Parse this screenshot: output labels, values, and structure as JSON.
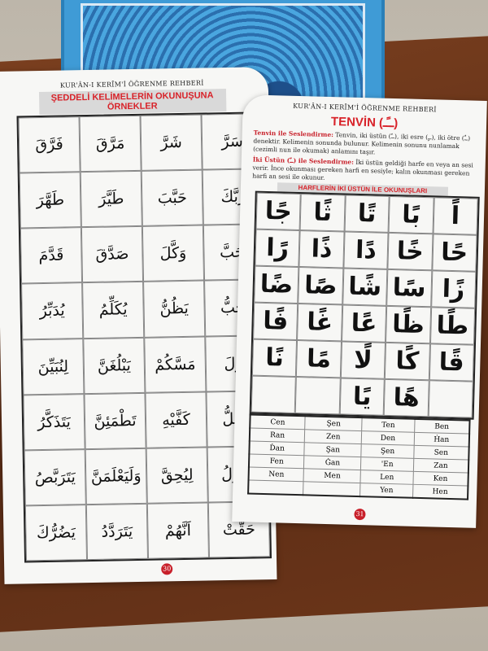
{
  "left_page": {
    "header": "KUR'ÂN-I KERÎM'İ ÖĞRENME REHBERİ",
    "banner": "ŞEDDELİ KELİMELERİN OKUNUŞUNA ÖRNEKLER",
    "rows": [
      [
        "فَرَّقَ",
        "مَرَّقَ",
        "شَرَّ",
        "سَرَّ"
      ],
      [
        "طَهَّرَ",
        "طَيَّرَ",
        "حَبَّبَ",
        "رَبَّكَ"
      ],
      [
        "قَدَّمَ",
        "صَدَّقَ",
        "وَكَّلَ",
        "اَحَبَّ"
      ],
      [
        "يُدَبِّرُ",
        "يُكَلِّمُ",
        "يَظُنُّ",
        "يُحِبُّ"
      ],
      [
        "لِنُبَيِّنَ",
        "يَبْلُغَنَّ",
        "مَسَّكُمْ",
        "نُزِّلَ"
      ],
      [
        "يَتَذَكَّرُ",
        "تَطْمَئِنَّ",
        "كَفَّيْهِ",
        "يُضِلُّ"
      ],
      [
        "يَتَرَبَّصُ",
        "وَلَيَعْلَمَنَّ",
        "لِيُحِقَّ",
        "تَتَنَزَّلُ"
      ],
      [
        "يَضُرُّكَ",
        "يَتَرَدَّدُ",
        "اَنَّهُمْ",
        "حَقَّتْ"
      ]
    ],
    "page_number": "30"
  },
  "right_page": {
    "header": "KUR'ÂN-I KERÎM'İ ÖĞRENME REHBERİ",
    "title": "TENVİN (ــًـ)",
    "para1_label": "Tenvin ile Seslendirme:",
    "para1_text": "Tenvin, iki üstün (ــً), iki esre (ــٍ), iki ötre (ــٌ) denektir. Kelimenin sonunda bulunur. Kelimenin sonunu nunlamak (cezimli nun ile okumak) anlamını taşır.",
    "para2_label": "İki Üstün (ــً) ile Seslendirme:",
    "para2_text": "İki üstün geldiği harfe en veya an sesi verir. İnce okunması gereken harfi en sesiyle; kalın okunması gereken harfi an sesi ile okunur.",
    "banner": "HARFLERİN İKİ ÜSTÜN İLE OKUNUŞLARI",
    "letters": [
      [
        "جًا",
        "ثًا",
        "تًا",
        "بًا",
        "اً"
      ],
      [
        "رًا",
        "ذًا",
        "دًا",
        "خًا",
        "حًا"
      ],
      [
        "ضًا",
        "صًا",
        "شًا",
        "سًا",
        "زًا"
      ],
      [
        "فًا",
        "غًا",
        "عًا",
        "ظًا",
        "طًا"
      ],
      [
        "نًا",
        "مًا",
        "لًا",
        "كًا",
        "قًا"
      ],
      [
        "",
        "",
        "يًا",
        "هًا",
        ""
      ]
    ],
    "transliteration": [
      [
        "Cen",
        "Şen",
        "Ten",
        "Ben"
      ],
      [
        "Ran",
        "Zen",
        "Den",
        "Ḣan"
      ],
      [
        "Ḋan",
        "Şan",
        "Şen",
        "Sen"
      ],
      [
        "Fen",
        "Ġan",
        "'En",
        "Zan"
      ],
      [
        "Nen",
        "Men",
        "Len",
        "Ken"
      ],
      [
        "",
        "",
        "Yen",
        "Hen"
      ]
    ],
    "page_number": "31"
  },
  "colors": {
    "accent_red": "#d8232a",
    "book_blue": "#3f9bd6"
  }
}
